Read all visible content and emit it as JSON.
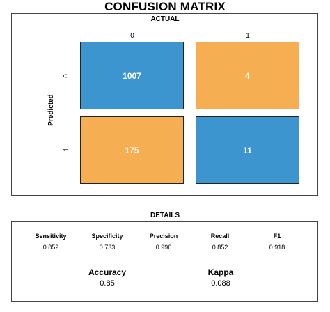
{
  "title": "CONFUSION MATRIX",
  "colors": {
    "correct": "#3d95d0",
    "incorrect": "#f5ae51"
  },
  "chart_data": {
    "type": "heatmap",
    "title": "CONFUSION MATRIX",
    "xlabel": "ACTUAL",
    "ylabel": "Predicted",
    "x_categories": [
      "0",
      "1"
    ],
    "y_categories": [
      "0",
      "1"
    ],
    "values": [
      [
        1007,
        4
      ],
      [
        175,
        11
      ]
    ],
    "cells": [
      {
        "predicted": "0",
        "actual": "0",
        "value": "1007",
        "kind": "correct"
      },
      {
        "predicted": "0",
        "actual": "1",
        "value": "4",
        "kind": "incorrect"
      },
      {
        "predicted": "1",
        "actual": "0",
        "value": "175",
        "kind": "incorrect"
      },
      {
        "predicted": "1",
        "actual": "1",
        "value": "11",
        "kind": "correct"
      }
    ]
  },
  "details": {
    "title": "DETAILS",
    "metrics": [
      {
        "name": "Sensitivity",
        "value": "0.852"
      },
      {
        "name": "Specificity",
        "value": "0.733"
      },
      {
        "name": "Precision",
        "value": "0.996"
      },
      {
        "name": "Recall",
        "value": "0.852"
      },
      {
        "name": "F1",
        "value": "0.918"
      }
    ],
    "accuracy": {
      "name": "Accuracy",
      "value": "0.85"
    },
    "kappa": {
      "name": "Kappa",
      "value": "0.088"
    }
  }
}
